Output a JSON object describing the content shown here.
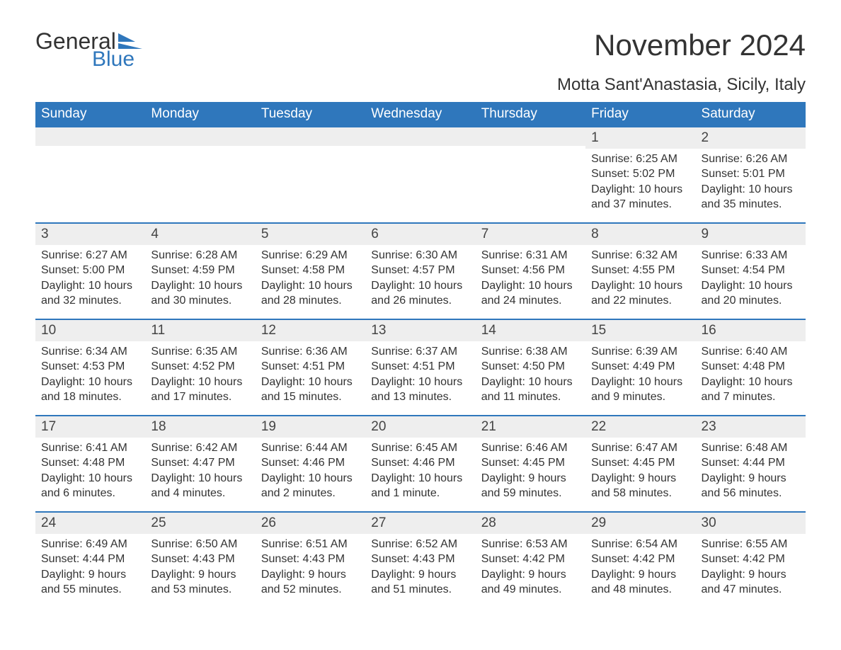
{
  "brand": {
    "word1": "General",
    "word2": "Blue",
    "text_color": "#333333",
    "accent_color": "#2f77bc"
  },
  "header": {
    "month_title": "November 2024",
    "location": "Motta Sant'Anastasia, Sicily, Italy"
  },
  "colors": {
    "header_bg": "#2f77bc",
    "header_text": "#ffffff",
    "daynum_bg": "#eeeeee",
    "text": "#333333",
    "page_bg": "#ffffff",
    "rule": "#2f77bc"
  },
  "calendar": {
    "weekdays": [
      "Sunday",
      "Monday",
      "Tuesday",
      "Wednesday",
      "Thursday",
      "Friday",
      "Saturday"
    ],
    "weeks": [
      [
        {
          "empty": true
        },
        {
          "empty": true
        },
        {
          "empty": true
        },
        {
          "empty": true
        },
        {
          "empty": true
        },
        {
          "day": "1",
          "sunrise": "Sunrise: 6:25 AM",
          "sunset": "Sunset: 5:02 PM",
          "daylight": "Daylight: 10 hours and 37 minutes."
        },
        {
          "day": "2",
          "sunrise": "Sunrise: 6:26 AM",
          "sunset": "Sunset: 5:01 PM",
          "daylight": "Daylight: 10 hours and 35 minutes."
        }
      ],
      [
        {
          "day": "3",
          "sunrise": "Sunrise: 6:27 AM",
          "sunset": "Sunset: 5:00 PM",
          "daylight": "Daylight: 10 hours and 32 minutes."
        },
        {
          "day": "4",
          "sunrise": "Sunrise: 6:28 AM",
          "sunset": "Sunset: 4:59 PM",
          "daylight": "Daylight: 10 hours and 30 minutes."
        },
        {
          "day": "5",
          "sunrise": "Sunrise: 6:29 AM",
          "sunset": "Sunset: 4:58 PM",
          "daylight": "Daylight: 10 hours and 28 minutes."
        },
        {
          "day": "6",
          "sunrise": "Sunrise: 6:30 AM",
          "sunset": "Sunset: 4:57 PM",
          "daylight": "Daylight: 10 hours and 26 minutes."
        },
        {
          "day": "7",
          "sunrise": "Sunrise: 6:31 AM",
          "sunset": "Sunset: 4:56 PM",
          "daylight": "Daylight: 10 hours and 24 minutes."
        },
        {
          "day": "8",
          "sunrise": "Sunrise: 6:32 AM",
          "sunset": "Sunset: 4:55 PM",
          "daylight": "Daylight: 10 hours and 22 minutes."
        },
        {
          "day": "9",
          "sunrise": "Sunrise: 6:33 AM",
          "sunset": "Sunset: 4:54 PM",
          "daylight": "Daylight: 10 hours and 20 minutes."
        }
      ],
      [
        {
          "day": "10",
          "sunrise": "Sunrise: 6:34 AM",
          "sunset": "Sunset: 4:53 PM",
          "daylight": "Daylight: 10 hours and 18 minutes."
        },
        {
          "day": "11",
          "sunrise": "Sunrise: 6:35 AM",
          "sunset": "Sunset: 4:52 PM",
          "daylight": "Daylight: 10 hours and 17 minutes."
        },
        {
          "day": "12",
          "sunrise": "Sunrise: 6:36 AM",
          "sunset": "Sunset: 4:51 PM",
          "daylight": "Daylight: 10 hours and 15 minutes."
        },
        {
          "day": "13",
          "sunrise": "Sunrise: 6:37 AM",
          "sunset": "Sunset: 4:51 PM",
          "daylight": "Daylight: 10 hours and 13 minutes."
        },
        {
          "day": "14",
          "sunrise": "Sunrise: 6:38 AM",
          "sunset": "Sunset: 4:50 PM",
          "daylight": "Daylight: 10 hours and 11 minutes."
        },
        {
          "day": "15",
          "sunrise": "Sunrise: 6:39 AM",
          "sunset": "Sunset: 4:49 PM",
          "daylight": "Daylight: 10 hours and 9 minutes."
        },
        {
          "day": "16",
          "sunrise": "Sunrise: 6:40 AM",
          "sunset": "Sunset: 4:48 PM",
          "daylight": "Daylight: 10 hours and 7 minutes."
        }
      ],
      [
        {
          "day": "17",
          "sunrise": "Sunrise: 6:41 AM",
          "sunset": "Sunset: 4:48 PM",
          "daylight": "Daylight: 10 hours and 6 minutes."
        },
        {
          "day": "18",
          "sunrise": "Sunrise: 6:42 AM",
          "sunset": "Sunset: 4:47 PM",
          "daylight": "Daylight: 10 hours and 4 minutes."
        },
        {
          "day": "19",
          "sunrise": "Sunrise: 6:44 AM",
          "sunset": "Sunset: 4:46 PM",
          "daylight": "Daylight: 10 hours and 2 minutes."
        },
        {
          "day": "20",
          "sunrise": "Sunrise: 6:45 AM",
          "sunset": "Sunset: 4:46 PM",
          "daylight": "Daylight: 10 hours and 1 minute."
        },
        {
          "day": "21",
          "sunrise": "Sunrise: 6:46 AM",
          "sunset": "Sunset: 4:45 PM",
          "daylight": "Daylight: 9 hours and 59 minutes."
        },
        {
          "day": "22",
          "sunrise": "Sunrise: 6:47 AM",
          "sunset": "Sunset: 4:45 PM",
          "daylight": "Daylight: 9 hours and 58 minutes."
        },
        {
          "day": "23",
          "sunrise": "Sunrise: 6:48 AM",
          "sunset": "Sunset: 4:44 PM",
          "daylight": "Daylight: 9 hours and 56 minutes."
        }
      ],
      [
        {
          "day": "24",
          "sunrise": "Sunrise: 6:49 AM",
          "sunset": "Sunset: 4:44 PM",
          "daylight": "Daylight: 9 hours and 55 minutes."
        },
        {
          "day": "25",
          "sunrise": "Sunrise: 6:50 AM",
          "sunset": "Sunset: 4:43 PM",
          "daylight": "Daylight: 9 hours and 53 minutes."
        },
        {
          "day": "26",
          "sunrise": "Sunrise: 6:51 AM",
          "sunset": "Sunset: 4:43 PM",
          "daylight": "Daylight: 9 hours and 52 minutes."
        },
        {
          "day": "27",
          "sunrise": "Sunrise: 6:52 AM",
          "sunset": "Sunset: 4:43 PM",
          "daylight": "Daylight: 9 hours and 51 minutes."
        },
        {
          "day": "28",
          "sunrise": "Sunrise: 6:53 AM",
          "sunset": "Sunset: 4:42 PM",
          "daylight": "Daylight: 9 hours and 49 minutes."
        },
        {
          "day": "29",
          "sunrise": "Sunrise: 6:54 AM",
          "sunset": "Sunset: 4:42 PM",
          "daylight": "Daylight: 9 hours and 48 minutes."
        },
        {
          "day": "30",
          "sunrise": "Sunrise: 6:55 AM",
          "sunset": "Sunset: 4:42 PM",
          "daylight": "Daylight: 9 hours and 47 minutes."
        }
      ]
    ]
  }
}
